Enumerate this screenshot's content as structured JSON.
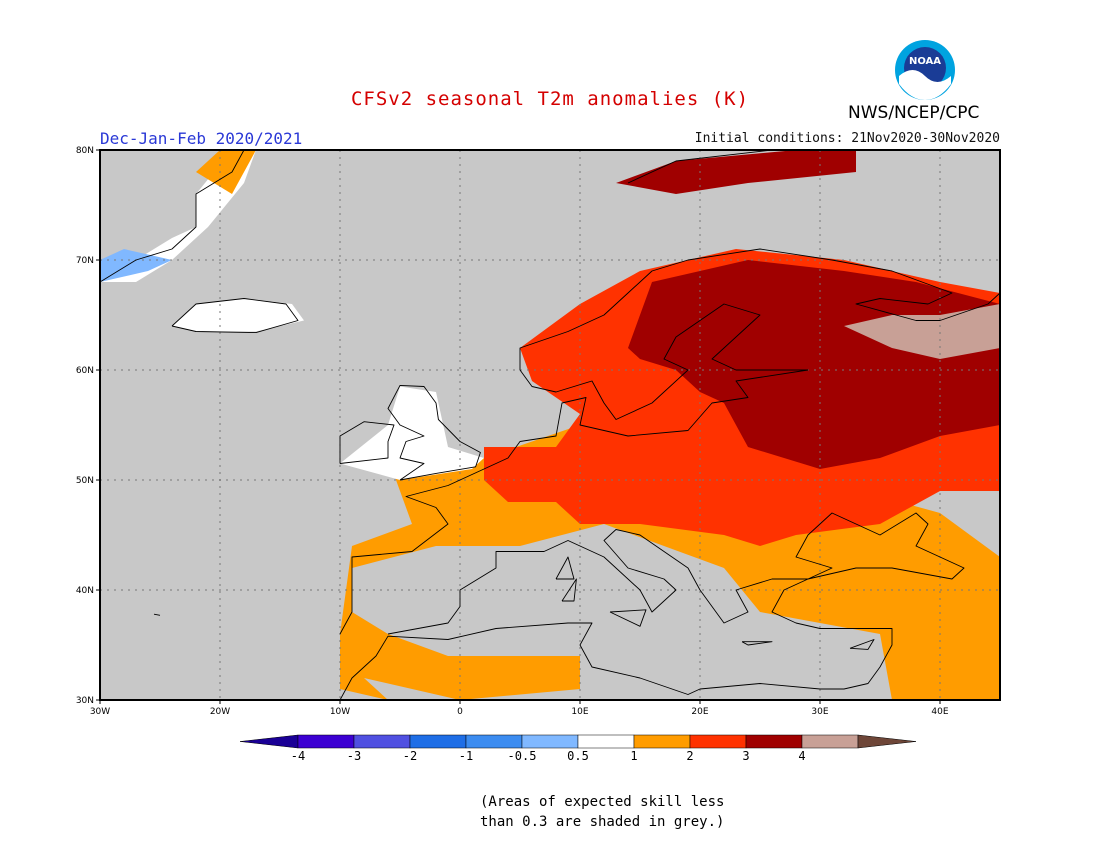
{
  "title": "CFSv2 seasonal T2m anomalies (K)",
  "period": "Dec-Jan-Feb 2020/2021",
  "initial_conditions": "Initial conditions: 21Nov2020-30Nov2020",
  "organization": "NWS/NCEP/CPC",
  "logo_text": "NOAA",
  "note_lines": [
    "(Areas of expected skill less",
    "than 0.3 are shaded in grey.)"
  ],
  "map": {
    "lon_range": [
      -30,
      45
    ],
    "lat_range": [
      30,
      80
    ],
    "lon_ticks": [
      {
        "value": -30,
        "label": "30W"
      },
      {
        "value": -20,
        "label": "20W"
      },
      {
        "value": -10,
        "label": "10W"
      },
      {
        "value": 0,
        "label": "0"
      },
      {
        "value": 10,
        "label": "10E"
      },
      {
        "value": 20,
        "label": "20E"
      },
      {
        "value": 30,
        "label": "30E"
      },
      {
        "value": 40,
        "label": "40E"
      }
    ],
    "lat_ticks": [
      {
        "value": 30,
        "label": "30N"
      },
      {
        "value": 40,
        "label": "40N"
      },
      {
        "value": 50,
        "label": "50N"
      },
      {
        "value": 60,
        "label": "60N"
      },
      {
        "value": 70,
        "label": "70N"
      },
      {
        "value": 80,
        "label": "80N"
      }
    ],
    "background_color": "#c8c8c8",
    "regions": [
      {
        "name": "southern-europe-warm",
        "color": "#ff9c00",
        "poly": [
          [
            -6,
            52
          ],
          [
            2,
            52
          ],
          [
            10,
            55
          ],
          [
            30,
            50
          ],
          [
            40,
            47
          ],
          [
            45,
            43
          ],
          [
            45,
            30
          ],
          [
            36,
            30
          ],
          [
            35,
            36
          ],
          [
            25,
            38
          ],
          [
            22,
            42
          ],
          [
            12,
            46
          ],
          [
            5,
            44
          ],
          [
            -2,
            44
          ],
          [
            -9,
            42
          ],
          [
            -9,
            38
          ],
          [
            -6,
            36
          ],
          [
            -1,
            34
          ],
          [
            10,
            34
          ],
          [
            10,
            31
          ],
          [
            0,
            30
          ],
          [
            -8,
            32
          ],
          [
            -6,
            30
          ],
          [
            -10,
            31
          ],
          [
            -10,
            36
          ],
          [
            -9,
            44
          ],
          [
            -4,
            46
          ],
          [
            -6,
            52
          ]
        ]
      },
      {
        "name": "central-europe-moderate",
        "color": "#ff3200",
        "poly": [
          [
            2,
            53
          ],
          [
            8,
            53
          ],
          [
            10,
            56
          ],
          [
            6,
            59
          ],
          [
            5,
            62
          ],
          [
            10,
            66
          ],
          [
            15,
            69
          ],
          [
            23,
            71
          ],
          [
            32,
            70
          ],
          [
            40,
            68
          ],
          [
            45,
            67
          ],
          [
            45,
            49
          ],
          [
            40,
            49
          ],
          [
            35,
            46
          ],
          [
            28,
            45
          ],
          [
            25,
            44
          ],
          [
            22,
            45
          ],
          [
            15,
            46
          ],
          [
            10,
            46
          ],
          [
            8,
            48
          ],
          [
            4,
            48
          ],
          [
            2,
            50
          ],
          [
            2,
            53
          ]
        ]
      },
      {
        "name": "northeast-europe-strong",
        "color": "#a00000",
        "poly": [
          [
            14,
            62
          ],
          [
            16,
            68
          ],
          [
            24,
            70
          ],
          [
            32,
            69
          ],
          [
            38,
            68
          ],
          [
            45,
            66
          ],
          [
            45,
            55
          ],
          [
            40,
            54
          ],
          [
            35,
            52
          ],
          [
            30,
            51
          ],
          [
            24,
            53
          ],
          [
            22,
            57
          ],
          [
            20,
            58
          ],
          [
            18,
            60
          ],
          [
            15,
            61
          ],
          [
            14,
            62
          ]
        ]
      },
      {
        "name": "russia-very-strong",
        "color": "#c8a096",
        "poly": [
          [
            32,
            64
          ],
          [
            36,
            65
          ],
          [
            40,
            65
          ],
          [
            45,
            66
          ],
          [
            45,
            62
          ],
          [
            40,
            61
          ],
          [
            36,
            62
          ],
          [
            32,
            64
          ]
        ]
      },
      {
        "name": "svalbard-strong",
        "color": "#a00000",
        "poly": [
          [
            13,
            77
          ],
          [
            18,
            79
          ],
          [
            28,
            80
          ],
          [
            33,
            80
          ],
          [
            33,
            78
          ],
          [
            24,
            77
          ],
          [
            18,
            76
          ],
          [
            13,
            77
          ]
        ]
      },
      {
        "name": "greenland-neutral",
        "color": "#ffffff",
        "poly": [
          [
            -30,
            68
          ],
          [
            -27,
            70
          ],
          [
            -24,
            72
          ],
          [
            -22,
            73
          ],
          [
            -22,
            76
          ],
          [
            -19,
            80
          ],
          [
            -17,
            80
          ],
          [
            -18,
            77
          ],
          [
            -21,
            73
          ],
          [
            -24,
            70
          ],
          [
            -27,
            68
          ],
          [
            -30,
            68
          ]
        ]
      },
      {
        "name": "greenland-warm",
        "color": "#ff9c00",
        "poly": [
          [
            -22,
            78
          ],
          [
            -20,
            80
          ],
          [
            -17,
            80
          ],
          [
            -19,
            76
          ],
          [
            -22,
            78
          ]
        ]
      },
      {
        "name": "greenland-cool",
        "color": "#80b8ff",
        "poly": [
          [
            -30,
            68
          ],
          [
            -26,
            69
          ],
          [
            -24,
            70
          ],
          [
            -28,
            71
          ],
          [
            -30,
            70
          ],
          [
            -30,
            68
          ]
        ]
      },
      {
        "name": "iceland-neutral",
        "color": "#ffffff",
        "poly": [
          [
            -24,
            64
          ],
          [
            -22,
            66
          ],
          [
            -18,
            66.5
          ],
          [
            -14,
            66
          ],
          [
            -13,
            64.5
          ],
          [
            -17,
            63.5
          ],
          [
            -22,
            63.5
          ],
          [
            -24,
            64
          ]
        ]
      },
      {
        "name": "uk-neutral",
        "color": "#ffffff",
        "poly": [
          [
            -10,
            51.5
          ],
          [
            -6,
            55
          ],
          [
            -5,
            58.5
          ],
          [
            -2,
            58
          ],
          [
            -1,
            53
          ],
          [
            2,
            52
          ],
          [
            1,
            51
          ],
          [
            -5,
            50
          ],
          [
            -10,
            51.5
          ]
        ]
      }
    ],
    "coastlines": [
      [
        [
          -10,
          36
        ],
        [
          -9,
          38
        ],
        [
          -9,
          43
        ],
        [
          -4,
          43.5
        ],
        [
          -1,
          46
        ],
        [
          -2,
          47.5
        ],
        [
          -4.5,
          48.5
        ],
        [
          -1,
          49.5
        ],
        [
          2,
          51
        ],
        [
          4,
          52
        ],
        [
          5,
          53.5
        ],
        [
          8,
          54
        ],
        [
          8.5,
          57
        ],
        [
          10.5,
          57.5
        ],
        [
          10,
          55
        ],
        [
          12,
          54.5
        ],
        [
          14,
          54
        ],
        [
          19,
          54.5
        ],
        [
          21,
          57
        ],
        [
          24,
          57.5
        ],
        [
          23,
          59
        ],
        [
          29,
          60
        ],
        [
          23,
          60
        ],
        [
          21,
          61
        ],
        [
          25,
          65
        ],
        [
          22,
          66
        ],
        [
          18,
          63
        ],
        [
          17,
          61
        ],
        [
          19,
          60
        ],
        [
          16,
          57
        ],
        [
          14,
          56
        ],
        [
          13,
          55.5
        ],
        [
          12,
          57
        ],
        [
          11,
          59
        ],
        [
          8,
          58
        ],
        [
          6,
          58.5
        ],
        [
          5,
          60
        ],
        [
          5,
          62
        ],
        [
          9,
          63.5
        ],
        [
          12,
          65
        ],
        [
          14,
          67
        ],
        [
          16,
          69
        ],
        [
          19,
          70
        ],
        [
          25,
          71
        ],
        [
          31,
          70
        ],
        [
          36,
          69
        ],
        [
          41,
          67
        ],
        [
          39,
          66
        ],
        [
          35,
          66.5
        ],
        [
          33,
          66
        ],
        [
          38,
          64.5
        ],
        [
          40,
          64.5
        ],
        [
          44,
          66
        ],
        [
          45,
          67
        ]
      ],
      [
        [
          -6,
          36
        ],
        [
          -1,
          37
        ],
        [
          0,
          38.5
        ],
        [
          0,
          40
        ],
        [
          3,
          42
        ],
        [
          3,
          43.5
        ],
        [
          7,
          43.5
        ],
        [
          9,
          44.5
        ],
        [
          12,
          43
        ],
        [
          15,
          40
        ],
        [
          16,
          38
        ],
        [
          18,
          40
        ],
        [
          17,
          41
        ],
        [
          14,
          42
        ],
        [
          12,
          44.5
        ],
        [
          13,
          45.5
        ],
        [
          15,
          45
        ],
        [
          19,
          42
        ],
        [
          20,
          40
        ],
        [
          22,
          37
        ],
        [
          24,
          38
        ],
        [
          23,
          40
        ],
        [
          26,
          41
        ],
        [
          29,
          41
        ],
        [
          31,
          42
        ],
        [
          28,
          43
        ],
        [
          29,
          45
        ],
        [
          31,
          47
        ],
        [
          33,
          46
        ],
        [
          35,
          45
        ],
        [
          38,
          47
        ],
        [
          39,
          46
        ],
        [
          38,
          44
        ],
        [
          42,
          42
        ],
        [
          41,
          41
        ],
        [
          36,
          42
        ],
        [
          33,
          42
        ],
        [
          29,
          41
        ],
        [
          27,
          40
        ],
        [
          26,
          38
        ],
        [
          28,
          37
        ],
        [
          30,
          36.5
        ],
        [
          36,
          36.5
        ],
        [
          36,
          35
        ],
        [
          35,
          33
        ],
        [
          34,
          31.5
        ],
        [
          32,
          31
        ],
        [
          30,
          31
        ],
        [
          25,
          31.5
        ],
        [
          20,
          31
        ],
        [
          19,
          30.5
        ],
        [
          15,
          32
        ],
        [
          11,
          33
        ],
        [
          10,
          35
        ],
        [
          11,
          37
        ],
        [
          9,
          37
        ],
        [
          3,
          36.5
        ],
        [
          -1,
          35.5
        ],
        [
          -6,
          35.8
        ],
        [
          -7,
          34
        ],
        [
          -9,
          32
        ],
        [
          -10,
          30
        ]
      ],
      [
        [
          -10,
          51.5
        ],
        [
          -10,
          54
        ],
        [
          -8,
          55.3
        ],
        [
          -5.5,
          55
        ],
        [
          -6,
          53.5
        ],
        [
          -6,
          52
        ],
        [
          -10,
          51.5
        ]
      ],
      [
        [
          -5,
          50
        ],
        [
          -3,
          51.5
        ],
        [
          -5,
          52
        ],
        [
          -4.5,
          53.5
        ],
        [
          -3,
          54
        ],
        [
          -5,
          55
        ],
        [
          -6,
          56.5
        ],
        [
          -5,
          58.6
        ],
        [
          -3,
          58.5
        ],
        [
          -2,
          57
        ],
        [
          -1.8,
          55.5
        ],
        [
          0,
          53.5
        ],
        [
          1.7,
          52.5
        ],
        [
          1.3,
          51.2
        ],
        [
          -2,
          50.6
        ],
        [
          -5,
          50
        ]
      ],
      [
        [
          -24,
          64
        ],
        [
          -22,
          66
        ],
        [
          -18,
          66.5
        ],
        [
          -14.5,
          66
        ],
        [
          -13.5,
          64.5
        ],
        [
          -17,
          63.4
        ],
        [
          -22,
          63.5
        ],
        [
          -24,
          64
        ]
      ],
      [
        [
          -30,
          68
        ],
        [
          -27,
          70
        ],
        [
          -24,
          71
        ],
        [
          -22,
          73
        ],
        [
          -22,
          76
        ],
        [
          -19,
          78
        ],
        [
          -18,
          80
        ]
      ],
      [
        [
          14,
          77
        ],
        [
          18,
          79
        ],
        [
          26,
          80
        ],
        [
          33,
          80
        ]
      ],
      [
        [
          8,
          41
        ],
        [
          9,
          43
        ],
        [
          9.5,
          41
        ],
        [
          8,
          41
        ]
      ],
      [
        [
          8.5,
          39
        ],
        [
          9.7,
          41
        ],
        [
          9.5,
          39
        ],
        [
          8.5,
          39
        ]
      ],
      [
        [
          12.5,
          38
        ],
        [
          15.5,
          38.2
        ],
        [
          15,
          36.7
        ],
        [
          12.5,
          38
        ]
      ],
      [
        [
          23.5,
          35.3
        ],
        [
          26,
          35.3
        ],
        [
          24,
          35
        ],
        [
          23.5,
          35.3
        ]
      ],
      [
        [
          32.5,
          34.7
        ],
        [
          34.5,
          35.5
        ],
        [
          34,
          34.6
        ],
        [
          32.5,
          34.7
        ]
      ],
      [
        [
          -25.5,
          37.8
        ],
        [
          -25,
          37.7
        ]
      ]
    ]
  },
  "colorbar": {
    "bounds": [
      "-4",
      "-3",
      "-2",
      "-1",
      "-0.5",
      "0.5",
      "1",
      "2",
      "3",
      "4"
    ],
    "colors": [
      "#3c00d2",
      "#5050e1",
      "#1e6ee6",
      "#3c8cf0",
      "#80b8ff",
      "#ffffff",
      "#ff9c00",
      "#ff3200",
      "#a00000",
      "#c8a096"
    ],
    "low_arrow_color": "#1a0096",
    "high_arrow_color": "#6e4638"
  }
}
